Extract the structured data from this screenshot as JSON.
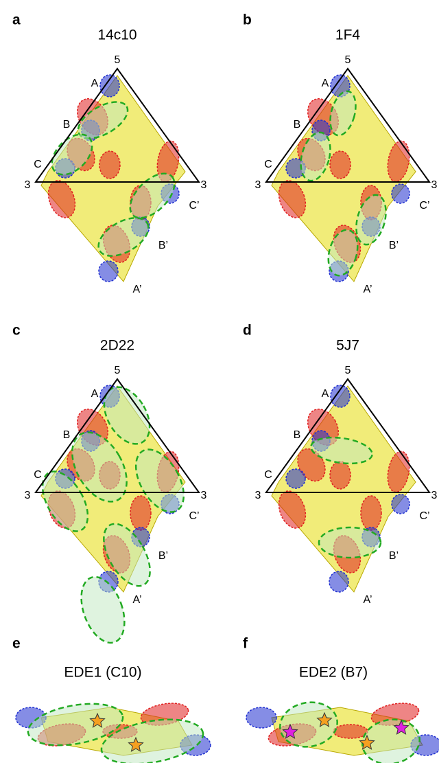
{
  "panels": [
    {
      "letter": "a",
      "title": "14c10",
      "vertices": [
        "5",
        "3",
        "3"
      ],
      "labels": [
        "A",
        "B",
        "C",
        "C’",
        "B’",
        "A’"
      ]
    },
    {
      "letter": "b",
      "title": "1F4",
      "vertices": [
        "5",
        "3",
        "3"
      ],
      "labels": [
        "A",
        "B",
        "C",
        "C’",
        "B’",
        "A’"
      ]
    },
    {
      "letter": "c",
      "title": "2D22",
      "vertices": [
        "5",
        "3",
        "3"
      ],
      "labels": [
        "A",
        "B",
        "C",
        "C’",
        "B’",
        "A’"
      ]
    },
    {
      "letter": "d",
      "title": "5J7",
      "vertices": [
        "5",
        "3",
        "3"
      ],
      "labels": [
        "A",
        "B",
        "C",
        "C’",
        "B’",
        "A’"
      ]
    },
    {
      "letter": "e",
      "title": "EDE1 (C10)"
    },
    {
      "letter": "f",
      "title": "EDE2 (B7)"
    }
  ]
}
